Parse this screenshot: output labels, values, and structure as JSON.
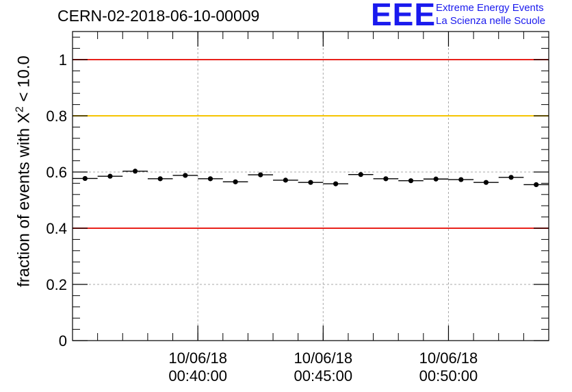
{
  "header": {
    "run_id": "CERN-02-2018-06-10-00009",
    "logo_mark": "EEE",
    "logo_line1": "Extreme Energy Events",
    "logo_line2": "La Scienza nelle Scuole"
  },
  "chart_data": {
    "type": "scatter",
    "title": "CERN-02-2018-06-10-00009",
    "ylabel_prefix": "fraction of events with",
    "ylabel_symbol": "X",
    "ylabel_superscript": "2",
    "ylabel_suffix": "< 10.0",
    "ylim": [
      0,
      1.1
    ],
    "yticks": [
      0,
      0.2,
      0.4,
      0.6,
      0.8,
      1
    ],
    "ytick_labels": [
      "0",
      "0.2",
      "0.4",
      "0.6",
      "0.8",
      "1"
    ],
    "xlim": [
      "00:35:00",
      "00:54:00"
    ],
    "xtick_labels": [
      {
        "date": "10/06/18",
        "time": "00:40:00"
      },
      {
        "date": "10/06/18",
        "time": "00:45:00"
      },
      {
        "date": "10/06/18",
        "time": "00:50:00"
      }
    ],
    "bin_width_min": 1,
    "grid": true,
    "reference_lines": [
      {
        "value": 1.0,
        "color": "#e8201a"
      },
      {
        "value": 0.8,
        "color": "#f5c400"
      },
      {
        "value": 0.4,
        "color": "#e8201a"
      }
    ],
    "series": [
      {
        "x": [
          "00:35:00",
          "00:36:00",
          "00:37:00",
          "00:38:00",
          "00:39:00",
          "00:40:00",
          "00:41:00",
          "00:42:00",
          "00:43:00",
          "00:44:00",
          "00:45:00",
          "00:46:00",
          "00:47:00",
          "00:48:00",
          "00:49:00",
          "00:50:00",
          "00:51:00",
          "00:52:00",
          "00:53:00"
        ],
        "y": [
          0.577,
          0.585,
          0.603,
          0.576,
          0.588,
          0.576,
          0.565,
          0.59,
          0.571,
          0.563,
          0.558,
          0.591,
          0.576,
          0.569,
          0.575,
          0.573,
          0.563,
          0.581,
          0.555
        ]
      }
    ]
  }
}
